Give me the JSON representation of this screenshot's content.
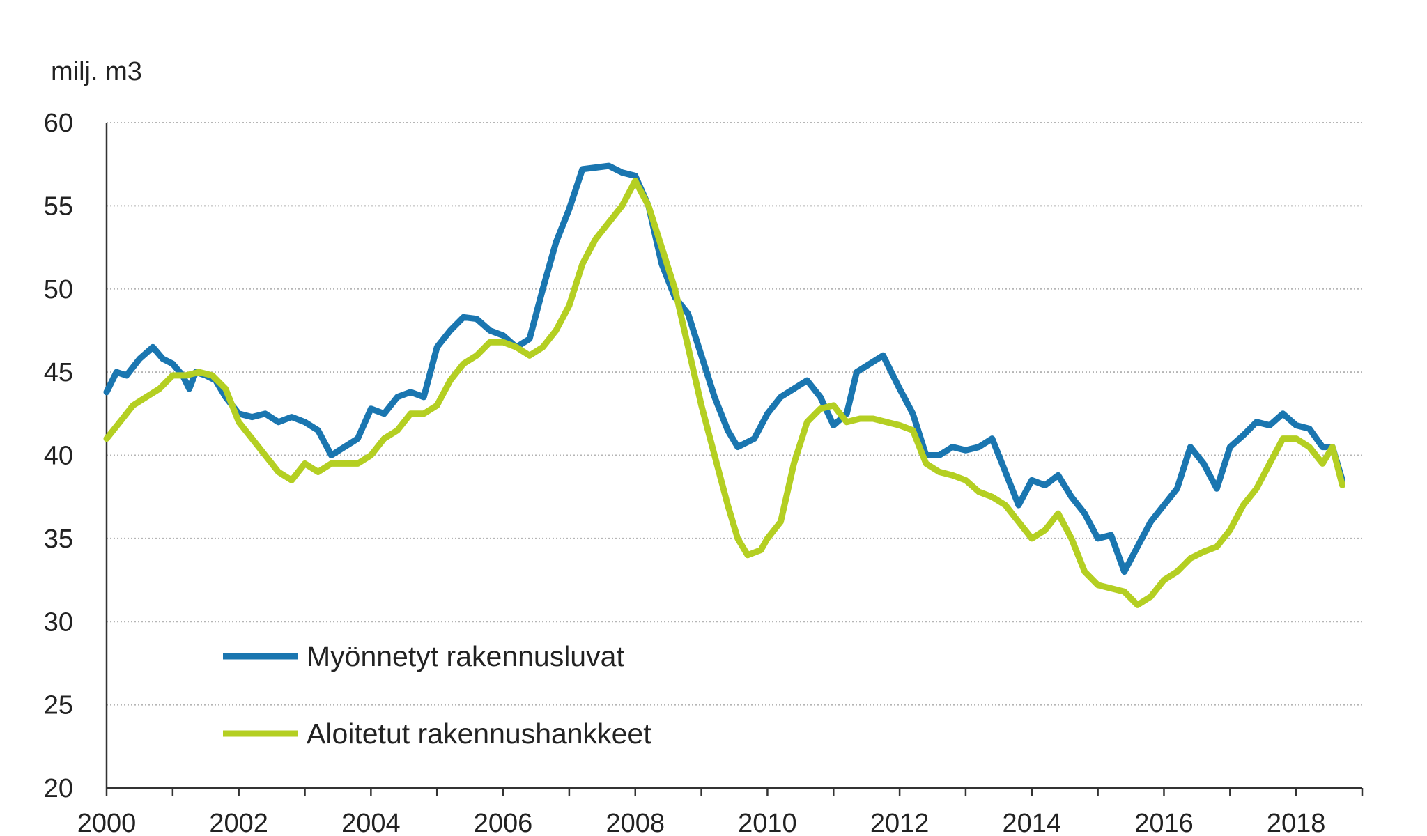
{
  "chart_data": {
    "type": "line",
    "title": "",
    "ylabel": "milj. m3",
    "xlabel": "",
    "ylim": [
      20,
      60
    ],
    "xlim": [
      2000,
      2019
    ],
    "yticks": [
      "20",
      "25",
      "30",
      "35",
      "40",
      "45",
      "50",
      "55",
      "60"
    ],
    "xticks": [
      "2000",
      "2002",
      "2004",
      "2006",
      "2008",
      "2010",
      "2012",
      "2014",
      "2016",
      "2018"
    ],
    "grid": "horizontal-dotted",
    "legend_position": "lower-left",
    "series": [
      {
        "name": "Myönnetyt rakennusluvat",
        "color": "#1a76b0",
        "points": [
          [
            2000.0,
            43.8
          ],
          [
            2000.15,
            45.0
          ],
          [
            2000.3,
            44.8
          ],
          [
            2000.5,
            45.8
          ],
          [
            2000.7,
            46.5
          ],
          [
            2000.85,
            45.8
          ],
          [
            2001.0,
            45.5
          ],
          [
            2001.15,
            44.8
          ],
          [
            2001.25,
            44.0
          ],
          [
            2001.35,
            45.0
          ],
          [
            2001.5,
            44.8
          ],
          [
            2001.65,
            44.5
          ],
          [
            2001.8,
            43.5
          ],
          [
            2002.0,
            42.5
          ],
          [
            2002.2,
            42.3
          ],
          [
            2002.4,
            42.5
          ],
          [
            2002.6,
            42.0
          ],
          [
            2002.8,
            42.3
          ],
          [
            2003.0,
            42.0
          ],
          [
            2003.2,
            41.5
          ],
          [
            2003.4,
            40.0
          ],
          [
            2003.6,
            40.5
          ],
          [
            2003.8,
            41.0
          ],
          [
            2004.0,
            42.8
          ],
          [
            2004.2,
            42.5
          ],
          [
            2004.4,
            43.5
          ],
          [
            2004.6,
            43.8
          ],
          [
            2004.8,
            43.5
          ],
          [
            2005.0,
            46.5
          ],
          [
            2005.2,
            47.5
          ],
          [
            2005.4,
            48.3
          ],
          [
            2005.6,
            48.2
          ],
          [
            2005.8,
            47.5
          ],
          [
            2006.0,
            47.2
          ],
          [
            2006.2,
            46.5
          ],
          [
            2006.4,
            47.0
          ],
          [
            2006.6,
            50.0
          ],
          [
            2006.8,
            52.8
          ],
          [
            2007.0,
            54.8
          ],
          [
            2007.2,
            57.2
          ],
          [
            2007.4,
            57.3
          ],
          [
            2007.6,
            57.4
          ],
          [
            2007.8,
            57.0
          ],
          [
            2008.0,
            56.8
          ],
          [
            2008.2,
            55.0
          ],
          [
            2008.4,
            51.5
          ],
          [
            2008.6,
            49.5
          ],
          [
            2008.8,
            48.5
          ],
          [
            2009.0,
            46.0
          ],
          [
            2009.2,
            43.5
          ],
          [
            2009.4,
            41.5
          ],
          [
            2009.55,
            40.5
          ],
          [
            2009.8,
            41.0
          ],
          [
            2010.0,
            42.5
          ],
          [
            2010.2,
            43.5
          ],
          [
            2010.4,
            44.0
          ],
          [
            2010.6,
            44.5
          ],
          [
            2010.8,
            43.5
          ],
          [
            2011.0,
            41.8
          ],
          [
            2011.2,
            42.5
          ],
          [
            2011.35,
            45.0
          ],
          [
            2011.55,
            45.5
          ],
          [
            2011.75,
            46.0
          ],
          [
            2012.0,
            44.0
          ],
          [
            2012.2,
            42.5
          ],
          [
            2012.4,
            40.0
          ],
          [
            2012.6,
            40.0
          ],
          [
            2012.8,
            40.5
          ],
          [
            2013.0,
            40.3
          ],
          [
            2013.2,
            40.5
          ],
          [
            2013.4,
            41.0
          ],
          [
            2013.6,
            39.0
          ],
          [
            2013.8,
            37.0
          ],
          [
            2014.0,
            38.5
          ],
          [
            2014.2,
            38.2
          ],
          [
            2014.4,
            38.8
          ],
          [
            2014.6,
            37.5
          ],
          [
            2014.8,
            36.5
          ],
          [
            2015.0,
            35.0
          ],
          [
            2015.2,
            35.2
          ],
          [
            2015.4,
            33.0
          ],
          [
            2015.6,
            34.5
          ],
          [
            2015.8,
            36.0
          ],
          [
            2016.0,
            37.0
          ],
          [
            2016.2,
            38.0
          ],
          [
            2016.4,
            40.5
          ],
          [
            2016.6,
            39.5
          ],
          [
            2016.8,
            38.0
          ],
          [
            2017.0,
            40.5
          ],
          [
            2017.2,
            41.2
          ],
          [
            2017.4,
            42.0
          ],
          [
            2017.6,
            41.8
          ],
          [
            2017.8,
            42.5
          ],
          [
            2018.0,
            41.8
          ],
          [
            2018.2,
            41.6
          ],
          [
            2018.4,
            40.5
          ],
          [
            2018.55,
            40.5
          ],
          [
            2018.7,
            38.5
          ]
        ]
      },
      {
        "name": "Aloitetut rakennushankkeet",
        "color": "#b4cf22",
        "points": [
          [
            2000.0,
            41.0
          ],
          [
            2000.2,
            42.0
          ],
          [
            2000.4,
            43.0
          ],
          [
            2000.6,
            43.5
          ],
          [
            2000.8,
            44.0
          ],
          [
            2001.0,
            44.8
          ],
          [
            2001.2,
            44.8
          ],
          [
            2001.4,
            45.0
          ],
          [
            2001.6,
            44.8
          ],
          [
            2001.8,
            44.0
          ],
          [
            2002.0,
            42.0
          ],
          [
            2002.2,
            41.0
          ],
          [
            2002.4,
            40.0
          ],
          [
            2002.6,
            39.0
          ],
          [
            2002.8,
            38.5
          ],
          [
            2003.0,
            39.5
          ],
          [
            2003.2,
            39.0
          ],
          [
            2003.4,
            39.5
          ],
          [
            2003.6,
            39.5
          ],
          [
            2003.8,
            39.5
          ],
          [
            2004.0,
            40.0
          ],
          [
            2004.2,
            41.0
          ],
          [
            2004.4,
            41.5
          ],
          [
            2004.6,
            42.5
          ],
          [
            2004.8,
            42.5
          ],
          [
            2005.0,
            43.0
          ],
          [
            2005.2,
            44.5
          ],
          [
            2005.4,
            45.5
          ],
          [
            2005.6,
            46.0
          ],
          [
            2005.8,
            46.8
          ],
          [
            2006.0,
            46.8
          ],
          [
            2006.2,
            46.5
          ],
          [
            2006.4,
            46.0
          ],
          [
            2006.6,
            46.5
          ],
          [
            2006.8,
            47.5
          ],
          [
            2007.0,
            49.0
          ],
          [
            2007.2,
            51.5
          ],
          [
            2007.4,
            53.0
          ],
          [
            2007.6,
            54.0
          ],
          [
            2007.8,
            55.0
          ],
          [
            2008.0,
            56.5
          ],
          [
            2008.2,
            55.0
          ],
          [
            2008.4,
            52.5
          ],
          [
            2008.6,
            50.0
          ],
          [
            2008.8,
            46.5
          ],
          [
            2009.0,
            43.0
          ],
          [
            2009.2,
            40.0
          ],
          [
            2009.4,
            37.0
          ],
          [
            2009.55,
            35.0
          ],
          [
            2009.7,
            34.0
          ],
          [
            2009.9,
            34.3
          ],
          [
            2010.0,
            35.0
          ],
          [
            2010.2,
            36.0
          ],
          [
            2010.4,
            39.5
          ],
          [
            2010.6,
            42.0
          ],
          [
            2010.8,
            42.8
          ],
          [
            2011.0,
            43.0
          ],
          [
            2011.2,
            42.0
          ],
          [
            2011.4,
            42.2
          ],
          [
            2011.6,
            42.2
          ],
          [
            2011.8,
            42.0
          ],
          [
            2012.0,
            41.8
          ],
          [
            2012.2,
            41.5
          ],
          [
            2012.4,
            39.5
          ],
          [
            2012.6,
            39.0
          ],
          [
            2012.8,
            38.8
          ],
          [
            2013.0,
            38.5
          ],
          [
            2013.2,
            37.8
          ],
          [
            2013.4,
            37.5
          ],
          [
            2013.6,
            37.0
          ],
          [
            2013.8,
            36.0
          ],
          [
            2014.0,
            35.0
          ],
          [
            2014.2,
            35.5
          ],
          [
            2014.4,
            36.5
          ],
          [
            2014.6,
            35.0
          ],
          [
            2014.8,
            33.0
          ],
          [
            2015.0,
            32.2
          ],
          [
            2015.2,
            32.0
          ],
          [
            2015.4,
            31.8
          ],
          [
            2015.6,
            31.0
          ],
          [
            2015.8,
            31.5
          ],
          [
            2016.0,
            32.5
          ],
          [
            2016.2,
            33.0
          ],
          [
            2016.4,
            33.8
          ],
          [
            2016.6,
            34.2
          ],
          [
            2016.8,
            34.5
          ],
          [
            2017.0,
            35.5
          ],
          [
            2017.2,
            37.0
          ],
          [
            2017.4,
            38.0
          ],
          [
            2017.6,
            39.5
          ],
          [
            2017.8,
            41.0
          ],
          [
            2018.0,
            41.0
          ],
          [
            2018.2,
            40.5
          ],
          [
            2018.4,
            39.5
          ],
          [
            2018.55,
            40.5
          ],
          [
            2018.7,
            38.2
          ]
        ]
      }
    ]
  }
}
